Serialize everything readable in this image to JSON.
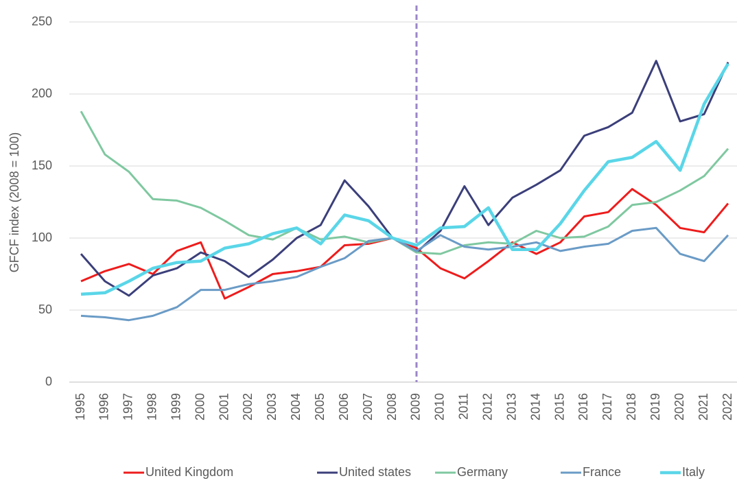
{
  "chart_data": {
    "type": "line",
    "y_label": "GFCF index (2008 = 100)",
    "categories": [
      "1995",
      "1996",
      "1997",
      "1998",
      "1999",
      "2000",
      "2001",
      "2002",
      "2003",
      "2004",
      "2005",
      "2006",
      "2007",
      "2008",
      "2009",
      "2010",
      "2011",
      "2012",
      "2013",
      "2014",
      "2015",
      "2016",
      "2017",
      "2018",
      "2019",
      "2020",
      "2021",
      "2022"
    ],
    "series": [
      {
        "name": "United Kingdom",
        "color": "#ee1c1c",
        "values": [
          70,
          77,
          82,
          75,
          91,
          97,
          58,
          66,
          75,
          77,
          80,
          95,
          96,
          100,
          93,
          79,
          72,
          84,
          97,
          89,
          97,
          115,
          118,
          134,
          123,
          107,
          104,
          124
        ]
      },
      {
        "name": "United states",
        "color": "#3b3f7a",
        "values": [
          89,
          70,
          60,
          74,
          79,
          90,
          84,
          73,
          85,
          100,
          109,
          140,
          122,
          100,
          90,
          105,
          136,
          109,
          128,
          137,
          147,
          171,
          177,
          187,
          223,
          181,
          186,
          222
        ]
      },
      {
        "name": "Germany",
        "color": "#7fc8a0",
        "values": [
          188,
          158,
          146,
          127,
          126,
          121,
          112,
          102,
          99,
          107,
          99,
          101,
          97,
          100,
          90,
          89,
          95,
          97,
          96,
          105,
          100,
          101,
          108,
          123,
          125,
          133,
          143,
          162
        ]
      },
      {
        "name": "France",
        "color": "#6a9bc6",
        "values": [
          46,
          45,
          43,
          46,
          52,
          64,
          64,
          68,
          70,
          73,
          80,
          86,
          98,
          100,
          91,
          102,
          94,
          92,
          94,
          97,
          91,
          94,
          96,
          105,
          107,
          89,
          84,
          102
        ]
      },
      {
        "name": "Italy",
        "color": "#5ad6e8",
        "values": [
          61,
          62,
          70,
          79,
          83,
          84,
          93,
          96,
          103,
          107,
          96,
          116,
          112,
          100,
          95,
          107,
          108,
          121,
          92,
          92,
          110,
          133,
          153,
          156,
          167,
          147,
          193,
          221
        ]
      }
    ],
    "ylim": [
      0,
      250
    ],
    "yticks": [
      0,
      50,
      100,
      150,
      200,
      250
    ],
    "grid": true,
    "vline": {
      "category": "2009",
      "color": "#9b86c8"
    },
    "legend": "bottom"
  }
}
